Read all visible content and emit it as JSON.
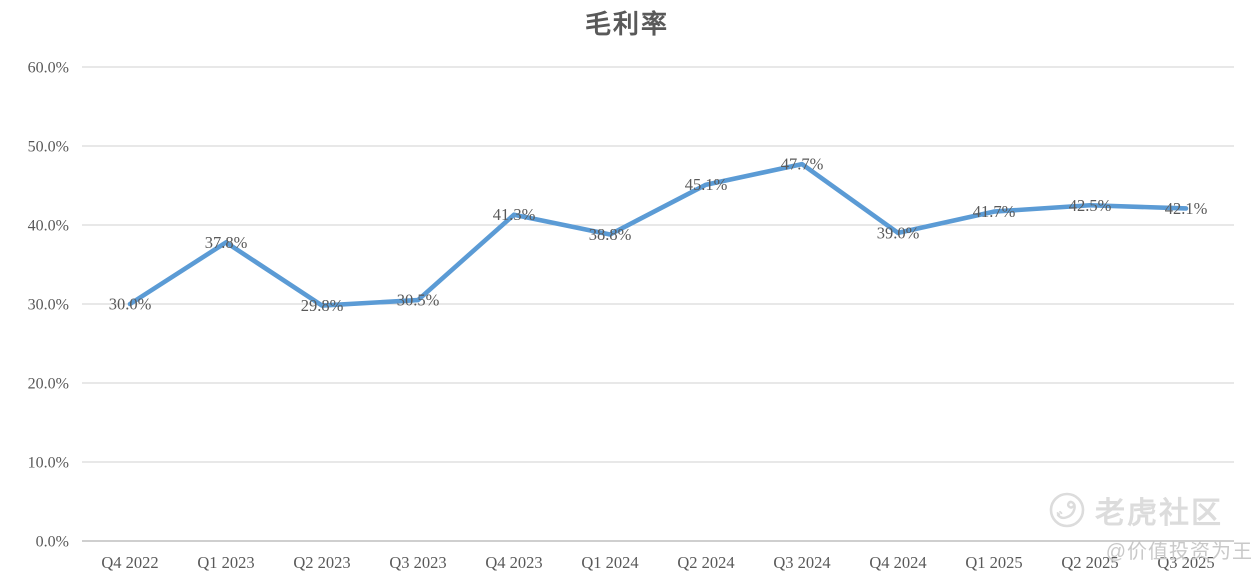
{
  "chart_data": {
    "type": "line",
    "title": "毛利率",
    "categories": [
      "Q4 2022",
      "Q1 2023",
      "Q2 2023",
      "Q3 2023",
      "Q4 2023",
      "Q1 2024",
      "Q2 2024",
      "Q3 2024",
      "Q4 2024",
      "Q1 2025",
      "Q2 2025",
      "Q3 2025"
    ],
    "series": [
      {
        "name": "毛利率",
        "values": [
          30.0,
          37.8,
          29.8,
          30.5,
          41.3,
          38.8,
          45.1,
          47.7,
          39.0,
          41.7,
          42.5,
          42.1
        ],
        "data_labels": [
          "30.0%",
          "37.8%",
          "29.8%",
          "30.5%",
          "41.3%",
          "38.8%",
          "45.1%",
          "47.7%",
          "39.0%",
          "41.7%",
          "42.5%",
          "42.1%"
        ]
      }
    ],
    "xlabel": "",
    "ylabel": "",
    "ylim": [
      0,
      60
    ],
    "y_tick_values": [
      0,
      10,
      20,
      30,
      40,
      50,
      60
    ],
    "y_tick_labels": [
      "0.0%",
      "10.0%",
      "20.0%",
      "30.0%",
      "40.0%",
      "50.0%",
      "60.0%"
    ],
    "grid": true,
    "legend_position": "none",
    "colors": {
      "line": "#5B9BD5",
      "data_label": "#595959",
      "axis_text": "#595959",
      "gridline": "#D9D9D9",
      "baseline": "#BFBFBF",
      "title": "#595959"
    }
  },
  "watermark": {
    "brand": "老虎社区",
    "handle": "@价值投资为王",
    "logo_icon": "tiger-circle-icon",
    "color": "#DCDCDC"
  }
}
